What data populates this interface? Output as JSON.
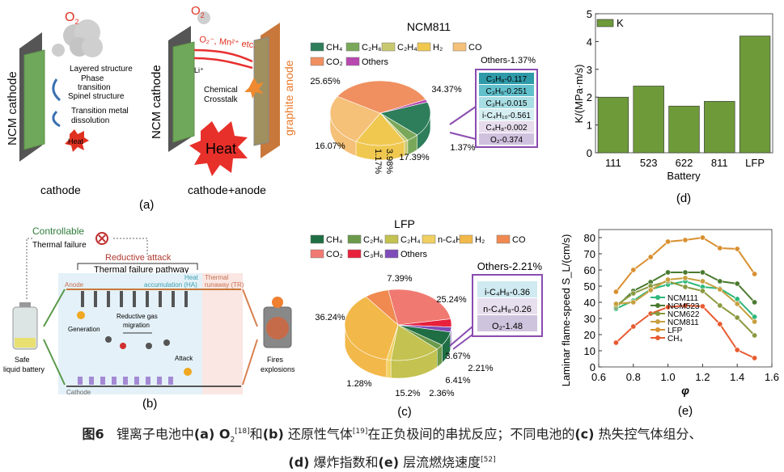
{
  "panel_a": {
    "left": {
      "cathode_label": "NCM cathode",
      "o2": "O",
      "o2_sub": "2",
      "steps": [
        "Layered structure",
        "Phase",
        "transition",
        "Spinel structure"
      ],
      "step2": [
        "Transition metal",
        "dissolution"
      ],
      "heat": "Heat",
      "caption": "cathode"
    },
    "right": {
      "cathode_label": "NCM cathode",
      "anode_label": "graphite anode",
      "o2": "O",
      "o2_sub": "2",
      "species": "O₂⁻, Mn²⁺ etc.",
      "li": "Li⁺",
      "crosstalk": [
        "Chemical",
        "Crosstalk"
      ],
      "heat": "Heat",
      "caption": "cathode+anode"
    },
    "label": "(a)"
  },
  "panel_b": {
    "controllable": "Controllable",
    "thermal_failure": "Thermal failure",
    "reductive_attack": "Reductive attack",
    "pathway": "Thermal failure pathway",
    "heat_acc": [
      "Heat",
      "accumulation (HA)"
    ],
    "thermal_runaway": [
      "Thermal",
      "runaway (TR)"
    ],
    "anode": "Anode",
    "cathode": "Cathode",
    "generation": "Generation",
    "migration": [
      "Reductive gas",
      "migration"
    ],
    "attack": "Attack",
    "safe": [
      "Safe",
      "liquid battery"
    ],
    "fires": [
      "Fires",
      "explosions"
    ],
    "label": "(b)"
  },
  "caption": {
    "prefix": "图6",
    "t1": "锂离子电池中",
    "a": "(a) O",
    "a_sub": "2",
    "a_ref": "[18]",
    "t2": "和",
    "b": "(b)",
    "t3": " 还原性气体",
    "b_ref": "[19]",
    "t4": "在正负极间的串扰反应；不同电池的",
    "c": "(c)",
    "t5": " 热失控气体组分、",
    "d": "(d)",
    "t6": " 爆炸指数和",
    "e": "(e)",
    "t7": " 层流燃烧速度",
    "e_ref": "[52]"
  },
  "chart_data": [
    {
      "type": "pie",
      "title": "NCM811",
      "panel": "c",
      "legend": [
        "CH₄",
        "C₂H₆",
        "C₂H₄",
        "H₂",
        "CO",
        "CO₂",
        "Others"
      ],
      "slices": [
        {
          "name": "CH₄",
          "value": 17.39,
          "label": "17.39%",
          "color": "#2e7d5b"
        },
        {
          "name": "C₂H₆",
          "value": 3.98,
          "label": "3.98%",
          "color": "#7aa85a"
        },
        {
          "name": "C₂H₄",
          "value": 1.17,
          "label": "1.17%",
          "color": "#c8c870"
        },
        {
          "name": "H₂",
          "value": 16.07,
          "label": "16.07%",
          "color": "#f0c850"
        },
        {
          "name": "CO",
          "value": 25.65,
          "label": "25.65%",
          "color": "#f5c078"
        },
        {
          "name": "CO₂",
          "value": 34.37,
          "label": "34.37%",
          "color": "#f09060"
        },
        {
          "name": "Others",
          "value": 1.37,
          "label": "1.37%",
          "color": "#b848b0"
        }
      ],
      "others_title": "Others-1.37%",
      "others_breakdown": [
        "C₃H₈-0.117",
        "C₃H₆-0.251",
        "C₃H₄-0.015",
        "i-C₄H₁₀-0.561",
        "C₄H₈-0.002",
        "O₂-0.374"
      ],
      "others_colors": [
        "#2f9aa8",
        "#62c0cc",
        "#a8dde3",
        "#d5eef2",
        "#e6dcec",
        "#cfc2de"
      ]
    },
    {
      "type": "pie",
      "title": "LFP",
      "panel": "c",
      "legend": [
        "CH₄",
        "C₂H₆",
        "C₂H₄",
        "n-C₄H₁₀",
        "H₂",
        "CO",
        "CO₂",
        "C₃H₆",
        "Others"
      ],
      "slices": [
        {
          "name": "CH₄",
          "value": 6.41,
          "label": "6.41%",
          "color": "#1f6e44"
        },
        {
          "name": "C₂H₆",
          "value": 2.36,
          "label": "2.36%",
          "color": "#6a9a4a"
        },
        {
          "name": "C₂H₄",
          "value": 15.2,
          "label": "15.2%",
          "color": "#c4c250"
        },
        {
          "name": "n-C₄H₁₀",
          "value": 1.28,
          "label": "1.28%",
          "color": "#f0d060"
        },
        {
          "name": "H₂",
          "value": 36.24,
          "label": "36.24%",
          "color": "#f2b84a"
        },
        {
          "name": "CO",
          "value": 7.39,
          "label": "7.39%",
          "color": "#f08a50"
        },
        {
          "name": "CO₂",
          "value": 25.24,
          "label": "25.24%",
          "color": "#f07a72"
        },
        {
          "name": "C₃H₆",
          "value": 3.67,
          "label": "3.67%",
          "color": "#e8203c"
        },
        {
          "name": "Others",
          "value": 2.21,
          "label": "2.21%",
          "color": "#7e4cb8"
        }
      ],
      "others_title": "Others-2.21%",
      "others_breakdown": [
        "i-C₄H₈-0.36",
        "n-C₄H₈-0.26",
        "O₂-1.48"
      ],
      "others_colors": [
        "#cfeaf0",
        "#e8dfee",
        "#cfc4de"
      ],
      "label": "(c)"
    },
    {
      "type": "bar",
      "panel": "d",
      "categories": [
        "111",
        "523",
        "622",
        "811",
        "LFP"
      ],
      "values": [
        2.0,
        2.4,
        1.68,
        1.85,
        4.2
      ],
      "series_name": "K",
      "color": "#6e9a3a",
      "xlabel": "Battery",
      "ylabel": "K/(MPa·m/s)",
      "ylim": [
        0,
        5
      ],
      "yticks": [
        0,
        1,
        2,
        3,
        4,
        5
      ],
      "legend_position": "top-left",
      "label": "(d)"
    },
    {
      "type": "line",
      "panel": "e",
      "x": [
        0.7,
        0.8,
        0.9,
        1.0,
        1.1,
        1.2,
        1.3,
        1.4,
        1.5
      ],
      "series": [
        {
          "name": "NCM111",
          "color": "#2db87a",
          "values": [
            36,
            41,
            48,
            51,
            53,
            49.5,
            48.5,
            42,
            31
          ]
        },
        {
          "name": "NCM523",
          "color": "#4a7a30",
          "values": [
            37,
            47,
            52.5,
            58.5,
            58.5,
            58.5,
            53,
            51.5,
            40
          ]
        },
        {
          "name": "NCM622",
          "color": "#8a9a40",
          "values": [
            38,
            45.5,
            50,
            53,
            49.5,
            47,
            38,
            30.5,
            19.5
          ]
        },
        {
          "name": "NCM811",
          "color": "#c8a040",
          "values": [
            39,
            40,
            47.5,
            54,
            55,
            53,
            48,
            39,
            28
          ]
        },
        {
          "name": "LFP",
          "color": "#d89030",
          "values": [
            46.5,
            60,
            68,
            77.5,
            78.5,
            80,
            73.5,
            73,
            57.5
          ]
        },
        {
          "name": "CH₄",
          "color": "#e85a30",
          "values": [
            15,
            25,
            33,
            37,
            38,
            37.5,
            26.5,
            10.5,
            5.5
          ]
        }
      ],
      "xlabel": "φ",
      "ylabel": "Laminar flame-speed S_L/(cm/s)",
      "xlim": [
        0.6,
        1.6
      ],
      "ylim": [
        0,
        85
      ],
      "xticks": [
        "0.6",
        "0.8",
        "1.0",
        "1.2",
        "1.4",
        "1.6"
      ],
      "yticks": [
        "0",
        "10",
        "20",
        "30",
        "40",
        "50",
        "60",
        "70",
        "80"
      ],
      "legend_position": "center-bottom",
      "label": "(e)"
    }
  ]
}
